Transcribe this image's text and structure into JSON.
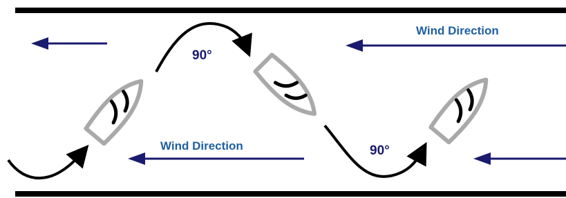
{
  "labels": {
    "wind_top": "Wind Direction",
    "wind_middle": "Wind Direction",
    "angle_top": "90°",
    "angle_bottom": "90°"
  }
}
